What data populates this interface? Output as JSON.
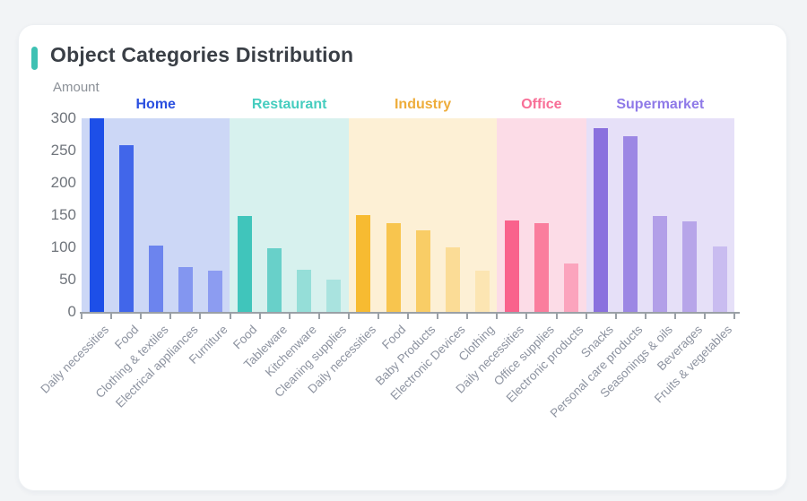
{
  "page": {
    "title": "Object Categories Distribution",
    "accent_color": "#3ec1b3",
    "card_background": "#ffffff",
    "page_background": "#f2f4f6"
  },
  "chart_data": {
    "type": "bar",
    "title": "Object Categories Distribution",
    "ylabel": "Amount",
    "ylim": [
      0,
      300
    ],
    "yticks": [
      0,
      50,
      100,
      150,
      200,
      250,
      300
    ],
    "grid": false,
    "x_label_rotation_deg": 45,
    "legend_position": "top-inside-bands",
    "axis_color": "#9aa0a6",
    "groups": [
      {
        "name": "Home",
        "label_color": "#2b50e0",
        "band_color": "#ccd7f6",
        "bars": [
          {
            "label": "Daily necessities",
            "value": 300,
            "color": "#1d4fe8"
          },
          {
            "label": "Food",
            "value": 258,
            "color": "#4166ea"
          },
          {
            "label": "Clothing & textiles",
            "value": 103,
            "color": "#6c84ee"
          },
          {
            "label": "Electrical appliances",
            "value": 70,
            "color": "#8396f0"
          },
          {
            "label": "Furniture",
            "value": 64,
            "color": "#8c9cf1"
          }
        ]
      },
      {
        "name": "Restaurant",
        "label_color": "#46cdbf",
        "band_color": "#d7f1ee",
        "bars": [
          {
            "label": "Food",
            "value": 148,
            "color": "#40c5bb"
          },
          {
            "label": "Tableware",
            "value": 98,
            "color": "#68d0c9"
          },
          {
            "label": "Kitchenware",
            "value": 65,
            "color": "#95ded8"
          },
          {
            "label": "Cleaning supplies",
            "value": 50,
            "color": "#a9e3df"
          }
        ]
      },
      {
        "name": "Industry",
        "label_color": "#eead3b",
        "band_color": "#fdf0d5",
        "bars": [
          {
            "label": "Daily necessities",
            "value": 150,
            "color": "#f7bb31"
          },
          {
            "label": "Food",
            "value": 138,
            "color": "#f8c54e"
          },
          {
            "label": "Baby Products",
            "value": 126,
            "color": "#f9cd66"
          },
          {
            "label": "Electronic Devices",
            "value": 100,
            "color": "#fbdc96"
          },
          {
            "label": "Clothing",
            "value": 64,
            "color": "#fce5b2"
          }
        ]
      },
      {
        "name": "Office",
        "label_color": "#f86e96",
        "band_color": "#fcdce7",
        "bars": [
          {
            "label": "Daily necessities",
            "value": 142,
            "color": "#f9628c"
          },
          {
            "label": "Office supplies",
            "value": 138,
            "color": "#fa7d9d"
          },
          {
            "label": "Electronic products",
            "value": 75,
            "color": "#fba4bd"
          }
        ]
      },
      {
        "name": "Supermarket",
        "label_color": "#8f7ae8",
        "band_color": "#e6e0f8",
        "bars": [
          {
            "label": "Snacks",
            "value": 285,
            "color": "#8a70de"
          },
          {
            "label": "Personal care products",
            "value": 272,
            "color": "#9c87e4"
          },
          {
            "label": "Seasonings & oils",
            "value": 148,
            "color": "#b29fe8"
          },
          {
            "label": "Beverages",
            "value": 140,
            "color": "#b7a5e9"
          },
          {
            "label": "Fruits & vegetables",
            "value": 102,
            "color": "#c9bcf0"
          }
        ]
      }
    ]
  }
}
